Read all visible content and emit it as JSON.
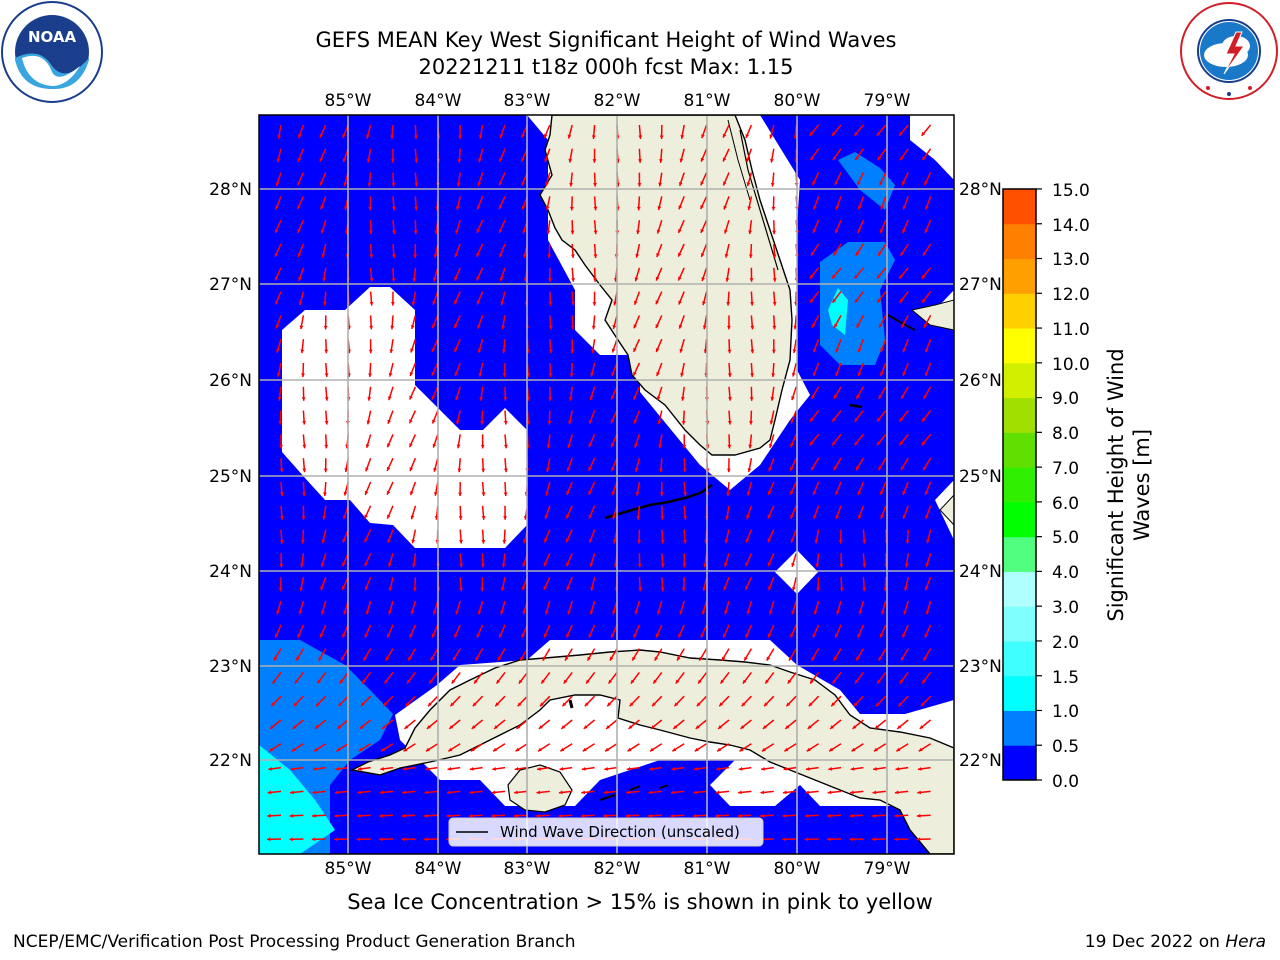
{
  "header": {
    "title_line1": "GEFS MEAN Key West Significant Height of Wind Waves",
    "title_line2": "20221211 t18z 000h fcst   Max: 1.15"
  },
  "logos": {
    "left": {
      "text": "NOAA",
      "ring_text": "NATIONAL OCEANIC AND ATMOSPHERIC ADMINISTRATION · U.S. DEPARTMENT OF COMMERCE",
      "color": "#1a3e8c"
    },
    "right": {
      "ring_text": "NATIONAL WEATHER SERVICE",
      "color": "#d01f26"
    }
  },
  "map": {
    "lon_labels": [
      "85°W",
      "84°W",
      "83°W",
      "82°W",
      "81°W",
      "80°W",
      "79°W"
    ],
    "lat_labels": [
      "28°N",
      "27°N",
      "26°N",
      "25°N",
      "24°N",
      "23°N",
      "22°N"
    ],
    "ocean_color": "#0000ff",
    "land_color": "#eeeedd",
    "legend_label": "Wind Wave Direction (unscaled)"
  },
  "colorbar": {
    "title_line1": "Significant Height of Wind",
    "title_line2": "Waves [m]",
    "ticks": [
      "15.0",
      "14.0",
      "13.0",
      "12.0",
      "11.0",
      "10.0",
      "9.0",
      "8.0",
      "7.0",
      "6.0",
      "5.0",
      "4.0",
      "3.0",
      "2.0",
      "1.5",
      "1.0",
      "0.5",
      "0.0"
    ],
    "colors": [
      "#0000ff",
      "#0080ff",
      "#00ffff",
      "#40ffff",
      "#80ffff",
      "#b0ffff",
      "#50ff80",
      "#00ff00",
      "#30ef00",
      "#60df00",
      "#a0e000",
      "#d0f000",
      "#ffff00",
      "#ffd000",
      "#ffa000",
      "#ff8000",
      "#ff5000",
      "#ff2000",
      "#ff0000"
    ]
  },
  "notes": {
    "sea_ice": "Sea Ice Concentration > 15% is shown in pink to yellow",
    "branch": "NCEP/EMC/Verification Post Processing Product Generation Branch",
    "date": "19 Dec 2022 on ",
    "machine": "Hera"
  }
}
